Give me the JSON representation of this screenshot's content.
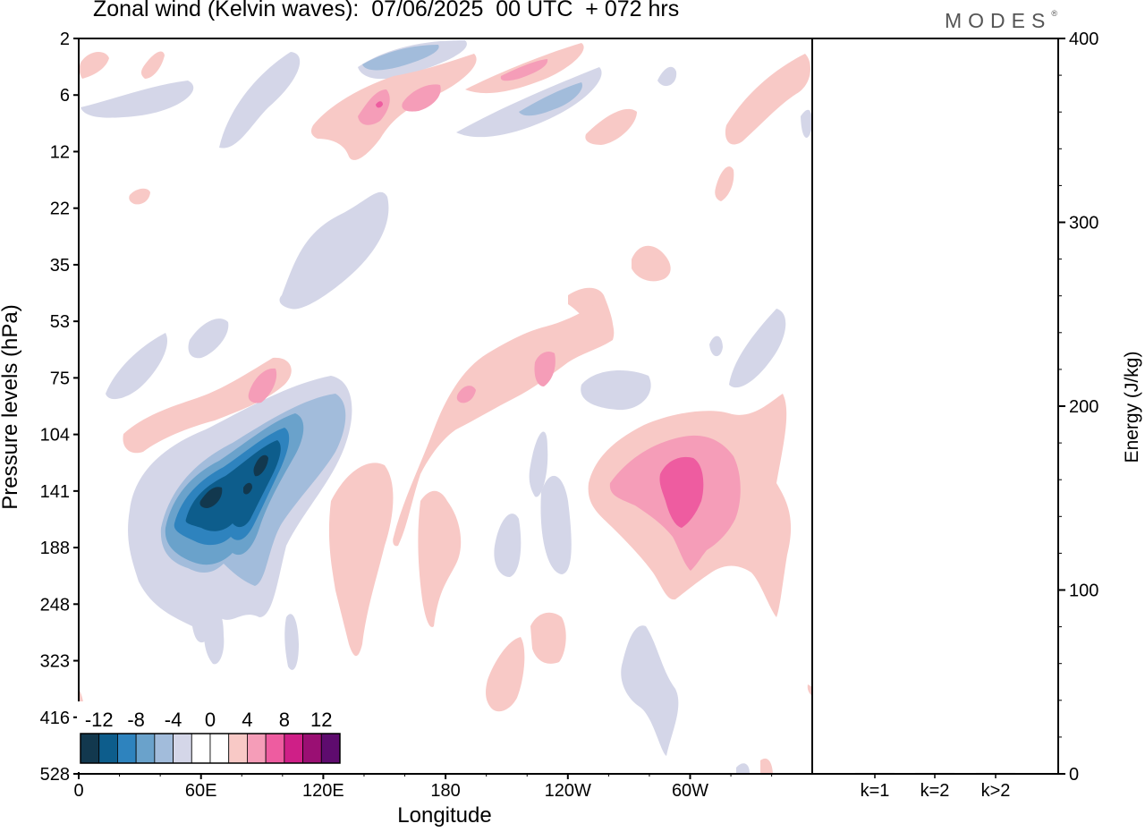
{
  "title": "Zonal wind (Kelvin waves):  07/06/2025  00 UTC  + 072 hrs",
  "brand": "MODES",
  "brand_mark": "®",
  "chart_data": [
    {
      "type": "heatmap",
      "title": "Zonal wind (Kelvin waves):  07/06/2025  00 UTC  + 072 hrs",
      "xlabel": "Longitude",
      "ylabel": "Pressure levels (hPa)",
      "x_ticks": [
        "0",
        "60E",
        "120E",
        "180",
        "120W",
        "60W"
      ],
      "y_ticks": [
        "2",
        "6",
        "12",
        "22",
        "35",
        "53",
        "75",
        "104",
        "141",
        "188",
        "248",
        "323",
        "416",
        "528"
      ],
      "colorbar": {
        "labels": [
          "-12",
          "-8",
          "-4",
          "0",
          "4",
          "8",
          "12"
        ],
        "colors": [
          "#12384e",
          "#0d5d8c",
          "#2e83be",
          "#6aa2cb",
          "#a2bcdb",
          "#d4d6e8",
          "#ffffff",
          "#ffffff",
          "#f8c9c6",
          "#f59db8",
          "#ee5ca0",
          "#cf1f87",
          "#9a0f73",
          "#5e0b6e"
        ]
      },
      "features": [
        {
          "label": "negative anomaly 60E-120E, 104-188 hPa",
          "x_lon": [
            40,
            110
          ],
          "y_level": [
            100,
            200
          ],
          "min_value": -13
        },
        {
          "label": "positive anomaly 60W, 104-248 hPa",
          "x_lon": [
            260,
            335
          ],
          "y_level": [
            100,
            250
          ],
          "max_value": 8
        }
      ]
    },
    {
      "type": "bar",
      "categories": [
        "k=1",
        "k=2",
        "k>2"
      ],
      "values": [
        0.5,
        0.5,
        0.5
      ],
      "ylabel": "Energy (J/kg)",
      "y_ticks": [
        "0",
        "100",
        "200",
        "300",
        "400"
      ],
      "ylim": [
        0,
        400
      ]
    }
  ],
  "colors": {
    "neg1": "#d4d6e8",
    "neg2": "#a2bcdb",
    "neg3": "#6aa2cb",
    "neg4": "#2e83be",
    "neg5": "#0d5d8c",
    "neg6": "#12384e",
    "pos1": "#f8c9c6",
    "pos2": "#f59db8",
    "pos3": "#ee5ca0",
    "pos4": "#cf1f87"
  }
}
